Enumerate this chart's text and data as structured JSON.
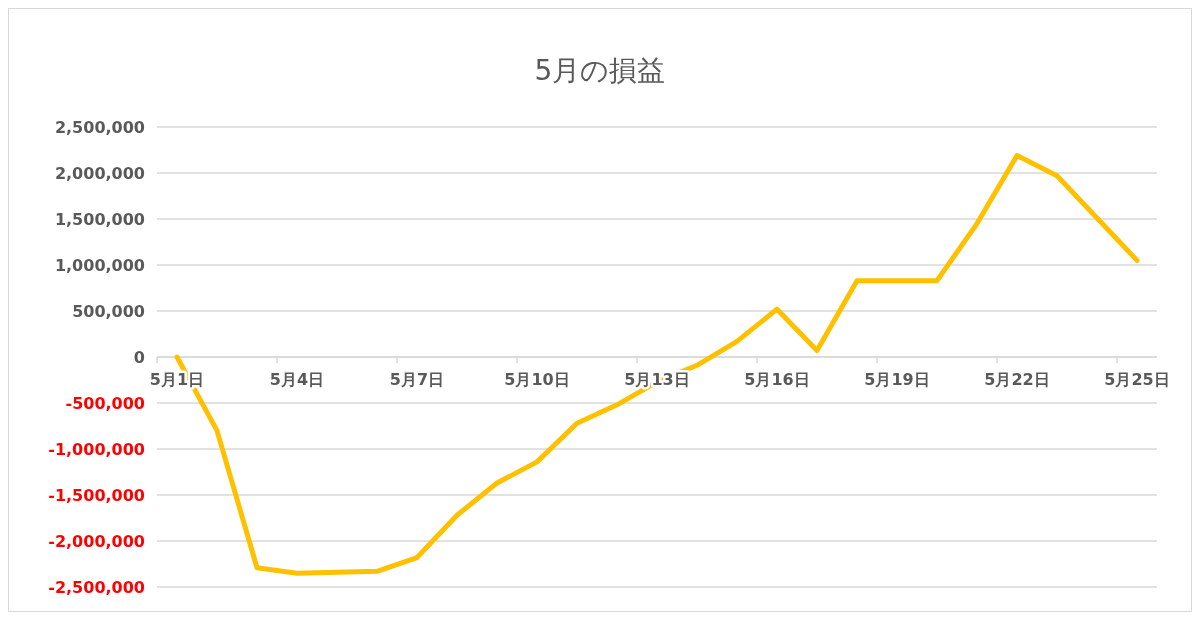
{
  "chart_data": {
    "type": "line",
    "title": "5月の損益",
    "categories": [
      "5月1日",
      null,
      null,
      "5月4日",
      null,
      null,
      "5月7日",
      null,
      null,
      "5月10日",
      null,
      null,
      "5月13日",
      null,
      null,
      "5月16日",
      null,
      null,
      "5月19日",
      null,
      null,
      "5月22日",
      null,
      null,
      "5月25日"
    ],
    "series": [
      {
        "color": "#ffc000",
        "values": [
          0,
          -800000,
          -2290000,
          -2350000,
          -2340000,
          -2330000,
          -2180000,
          -1720000,
          -1370000,
          -1140000,
          -720000,
          -520000,
          -270000,
          -90000,
          170000,
          520000,
          70000,
          830000,
          830000,
          830000,
          1450000,
          2190000,
          1970000,
          1510000,
          1050000
        ]
      }
    ],
    "ylim": [
      -2500000,
      2500000
    ],
    "yticks": [
      {
        "value": -2500000,
        "label": "-2,500,000"
      },
      {
        "value": -2000000,
        "label": "-2,000,000"
      },
      {
        "value": -1500000,
        "label": "-1,500,000"
      },
      {
        "value": -1000000,
        "label": "-1,000,000"
      },
      {
        "value": -500000,
        "label": "-500,000"
      },
      {
        "value": 0,
        "label": "0"
      },
      {
        "value": 500000,
        "label": "500,000"
      },
      {
        "value": 1000000,
        "label": "1,000,000"
      },
      {
        "value": 1500000,
        "label": "1,500,000"
      },
      {
        "value": 2000000,
        "label": "2,000,000"
      },
      {
        "value": 2500000,
        "label": "2,500,000"
      }
    ],
    "grid": "y",
    "marker": "none",
    "line_style": "solid"
  }
}
